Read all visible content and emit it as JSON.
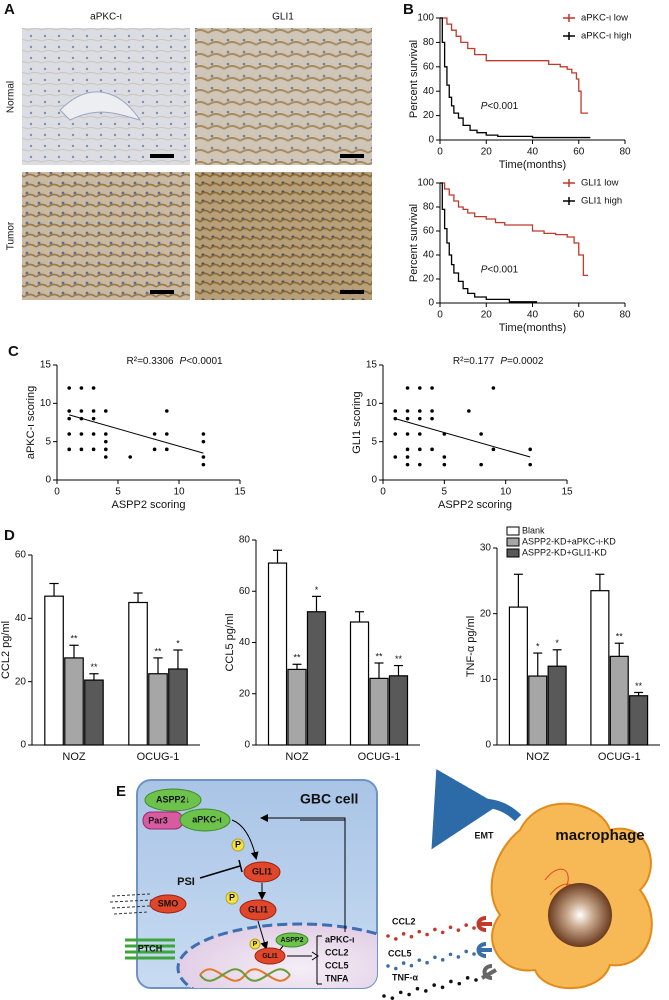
{
  "panel_labels": [
    "A",
    "B",
    "C",
    "D",
    "E"
  ],
  "panel_a": {
    "columns": [
      "aPKC-ι",
      "GLI1"
    ],
    "rows": [
      "Normal",
      "Tumor"
    ]
  },
  "chart_data": [
    {
      "type": "line",
      "ylabel": "Percent survival",
      "xlabel": "Time(months)",
      "annotation": [
        "P",
        "<0.001"
      ],
      "xlim": [
        0,
        80
      ],
      "xticks": [
        0,
        20,
        40,
        60,
        80
      ],
      "ylim": [
        0,
        100
      ],
      "yticks": [
        0,
        20,
        40,
        60,
        80,
        100
      ],
      "legend": "upper right",
      "series": [
        {
          "name": "aPKC-ι low",
          "color": "#c0392b",
          "x": [
            0,
            3,
            3,
            5,
            5,
            7,
            7,
            9,
            9,
            12,
            12,
            15,
            15,
            20,
            20,
            47,
            47,
            52,
            52,
            55,
            55,
            57,
            57,
            59,
            59,
            60,
            60,
            61,
            61,
            64
          ],
          "values": [
            100,
            100,
            95,
            95,
            90,
            90,
            85,
            85,
            80,
            80,
            75,
            75,
            70,
            70,
            65,
            65,
            62,
            62,
            60,
            60,
            58,
            58,
            55,
            55,
            50,
            50,
            40,
            40,
            22,
            22
          ]
        },
        {
          "name": "aPKC-ι high",
          "color": "#000000",
          "x": [
            0,
            1,
            1,
            2,
            2,
            3,
            3,
            4,
            4,
            5,
            5,
            6,
            6,
            8,
            8,
            10,
            10,
            13,
            13,
            16,
            16,
            20,
            20,
            25,
            25,
            40,
            40,
            65
          ],
          "values": [
            100,
            100,
            80,
            80,
            60,
            60,
            45,
            45,
            35,
            35,
            28,
            28,
            22,
            22,
            18,
            18,
            12,
            12,
            8,
            8,
            6,
            6,
            4,
            4,
            3,
            3,
            2,
            2
          ]
        }
      ]
    },
    {
      "type": "line",
      "ylabel": "Percent survival",
      "xlabel": "Time(months)",
      "annotation": [
        "P",
        "<0.001"
      ],
      "xlim": [
        0,
        80
      ],
      "xticks": [
        0,
        20,
        40,
        60,
        80
      ],
      "ylim": [
        0,
        100
      ],
      "yticks": [
        0,
        20,
        40,
        60,
        80,
        100
      ],
      "legend": "upper right",
      "series": [
        {
          "name": "GLI1 low",
          "color": "#c0392b",
          "x": [
            0,
            2,
            2,
            4,
            4,
            6,
            6,
            8,
            8,
            10,
            10,
            12,
            12,
            15,
            15,
            20,
            20,
            24,
            24,
            28,
            28,
            40,
            40,
            45,
            45,
            50,
            50,
            55,
            55,
            58,
            58,
            60,
            60,
            62,
            62,
            64
          ],
          "values": [
            100,
            100,
            95,
            95,
            90,
            90,
            85,
            85,
            80,
            80,
            78,
            78,
            75,
            75,
            72,
            72,
            70,
            70,
            67,
            67,
            65,
            65,
            60,
            60,
            58,
            58,
            57,
            57,
            55,
            55,
            50,
            50,
            40,
            40,
            23,
            23
          ]
        },
        {
          "name": "GLI1 high",
          "color": "#000000",
          "x": [
            0,
            1,
            1,
            2,
            2,
            3,
            3,
            4,
            4,
            5,
            5,
            6,
            6,
            8,
            8,
            10,
            10,
            12,
            12,
            15,
            15,
            20,
            20,
            30,
            30,
            42
          ],
          "values": [
            100,
            100,
            78,
            78,
            62,
            62,
            50,
            50,
            40,
            40,
            32,
            32,
            25,
            25,
            18,
            18,
            12,
            12,
            8,
            8,
            5,
            5,
            3,
            3,
            1,
            1
          ]
        }
      ]
    },
    {
      "type": "scatter",
      "ylabel": "aPKC-ι scoring",
      "xlabel": "ASPP2 scoring",
      "annotation": [
        "R²=0.3306",
        "P",
        "<0.0001"
      ],
      "xlim": [
        0,
        15
      ],
      "xticks": [
        0,
        5,
        10,
        15
      ],
      "ylim": [
        0,
        15
      ],
      "yticks": [
        0,
        5,
        10,
        15
      ],
      "color": "#000000",
      "x": [
        1,
        2,
        3,
        1,
        2,
        3,
        4,
        9,
        1,
        2,
        3,
        1,
        2,
        3,
        4,
        8,
        9,
        12,
        4,
        12,
        1,
        2,
        3,
        4,
        8,
        9,
        4,
        6,
        12,
        12
      ],
      "values": [
        12,
        12,
        12,
        9,
        9,
        9,
        9,
        9,
        8,
        8,
        8,
        6,
        6,
        6,
        6,
        6,
        6,
        6,
        5,
        5,
        4,
        4,
        4,
        4,
        4,
        4,
        3,
        3,
        3,
        2
      ],
      "fit": {
        "x": [
          1,
          12
        ],
        "values": [
          8.5,
          3.5
        ]
      }
    },
    {
      "type": "scatter",
      "ylabel": "GLI1 scoring",
      "xlabel": "ASPP2 scoring",
      "annotation": [
        "R²=0.177",
        "P",
        "=0.0002"
      ],
      "xlim": [
        0,
        15
      ],
      "xticks": [
        0,
        5,
        10,
        15
      ],
      "ylim": [
        0,
        15
      ],
      "yticks": [
        0,
        5,
        10,
        15
      ],
      "color": "#000000",
      "x": [
        2,
        3,
        4,
        9,
        1,
        2,
        3,
        4,
        7,
        1,
        2,
        3,
        4,
        1,
        2,
        3,
        5,
        8,
        2,
        3,
        4,
        9,
        12,
        1,
        2,
        5,
        2,
        3,
        5,
        8,
        12
      ],
      "values": [
        12,
        12,
        12,
        12,
        9,
        9,
        9,
        9,
        9,
        8,
        8,
        8,
        8,
        6,
        6,
        6,
        6,
        6,
        4,
        4,
        4,
        4,
        4,
        3,
        3,
        3,
        2,
        2,
        2,
        2,
        2
      ],
      "fit": {
        "x": [
          1,
          12
        ],
        "values": [
          8,
          3
        ]
      }
    },
    {
      "type": "bar",
      "ylabel": "CCL2 pg/ml",
      "categories": [
        "NOZ",
        "OCUG-1"
      ],
      "ylim": [
        0,
        60
      ],
      "yticks": [
        0,
        20,
        40,
        60
      ],
      "series": [
        {
          "color": "#ffffff",
          "values": [
            47,
            45
          ],
          "errors": [
            4,
            3
          ]
        },
        {
          "color": "#a6a6a6",
          "values": [
            27.5,
            22.5
          ],
          "errors": [
            4,
            5
          ],
          "significance": [
            "**",
            "**"
          ]
        },
        {
          "color": "#595959",
          "values": [
            20.5,
            24
          ],
          "errors": [
            2,
            6
          ],
          "significance": [
            "**",
            "*"
          ]
        }
      ]
    },
    {
      "type": "bar",
      "ylabel": "CCL5 pg/ml",
      "categories": [
        "NOZ",
        "OCUG-1"
      ],
      "ylim": [
        0,
        80
      ],
      "yticks": [
        0,
        20,
        40,
        60,
        80
      ],
      "series": [
        {
          "color": "#ffffff",
          "values": [
            71,
            48
          ],
          "errors": [
            5,
            4
          ]
        },
        {
          "color": "#a6a6a6",
          "values": [
            29.5,
            26
          ],
          "errors": [
            2,
            6
          ],
          "significance": [
            "**",
            "**"
          ]
        },
        {
          "color": "#595959",
          "values": [
            52,
            27
          ],
          "errors": [
            6,
            4
          ],
          "significance": [
            "*",
            "**"
          ]
        }
      ]
    },
    {
      "type": "bar",
      "ylabel": "TNF-α pg/ml",
      "categories": [
        "NOZ",
        "OCUG-1"
      ],
      "ylim": [
        0,
        30
      ],
      "yticks": [
        0,
        10,
        20,
        30
      ],
      "legend": "upper right",
      "series": [
        {
          "name": "Blank",
          "color": "#ffffff",
          "values": [
            21,
            23.5
          ],
          "errors": [
            5,
            2.5
          ]
        },
        {
          "name": "ASPP2-KD+aPKC-ι-KD",
          "color": "#a6a6a6",
          "values": [
            10.5,
            13.5
          ],
          "errors": [
            3.5,
            2
          ],
          "significance": [
            "*",
            "**"
          ]
        },
        {
          "name": "ASPP2-KD+GLI1-KD",
          "color": "#595959",
          "values": [
            12,
            7.5
          ],
          "errors": [
            2.5,
            0.5
          ],
          "significance": [
            "*",
            "**"
          ]
        }
      ]
    }
  ],
  "diagram": {
    "cell_label": "GBC cell",
    "aspp2": "ASPP2↓",
    "par3": "Par3",
    "apkc": "aPKC-ι",
    "p_labels": [
      "P",
      "P",
      "P"
    ],
    "psi": "PSI",
    "gli1": [
      "GLI1",
      "GLI1",
      "GLI1"
    ],
    "smo": "SMO",
    "ptch": "PTCH",
    "aspp2_nucleus": "ASPP2",
    "targets": [
      "aPKC-ι",
      "CCL2",
      "CCL5",
      "TNFA"
    ],
    "emt": "EMT",
    "macrophage": "macrophage",
    "secreted": [
      "CCL2",
      "CCL5",
      "TNF-α"
    ]
  }
}
